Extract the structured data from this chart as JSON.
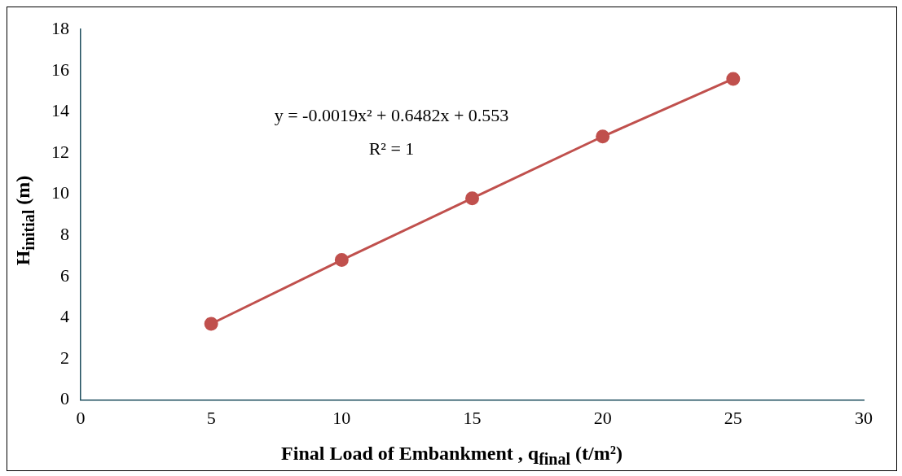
{
  "chart_data": {
    "type": "line",
    "xlabel": "Final Load of Embankment , q$_{final}$ (t/m²)",
    "ylabel": "H$_{initial}$ (m)",
    "x": [
      5,
      10,
      15,
      20,
      25
    ],
    "series": [
      {
        "color": "#c0504d",
        "values": [
          3.7,
          6.8,
          9.8,
          12.8,
          15.6
        ]
      }
    ],
    "xlim": [
      0,
      30
    ],
    "xticks": [
      0,
      5,
      10,
      15,
      20,
      25,
      30
    ],
    "ylim": [
      0,
      18
    ],
    "yticks": [
      0,
      2,
      4,
      6,
      8,
      10,
      12,
      14,
      16,
      18
    ],
    "grid": false,
    "legend": false,
    "marker": "circle",
    "line_style": "solid",
    "annotations": [
      "y = -0.0019x² + 0.6482x + 0.553",
      "R² = 1"
    ]
  }
}
